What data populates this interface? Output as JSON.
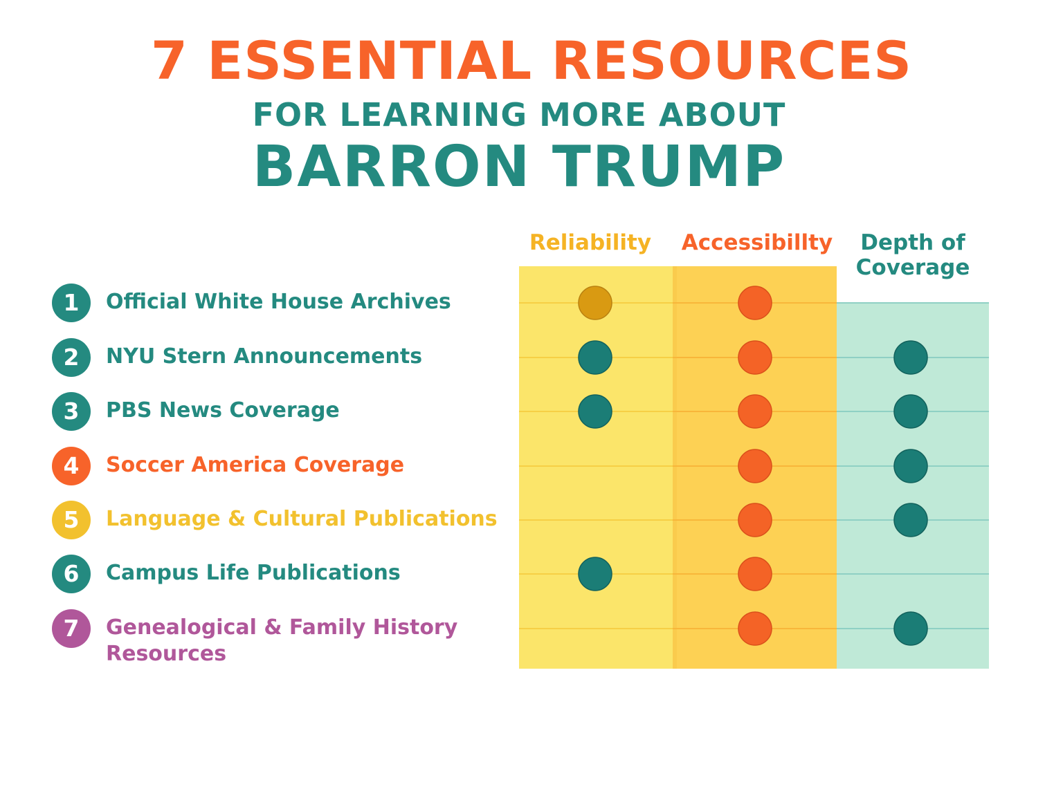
{
  "title": {
    "line1": "7 ESSENTIAL RESOURCES",
    "line2": "FOR LEARNING MORE ABOUT",
    "line3": "BARRON TRUMP"
  },
  "colors": {
    "orange": "#f7632a",
    "teal": "#248a80",
    "yellow": "#f2c12e",
    "purple": "#b0579a",
    "gold_header": "#f5b324",
    "dot_teal": "#1b7d76",
    "dot_orange": "#f46326",
    "dot_gold": "#d99a12"
  },
  "columns": [
    {
      "label_line1": "Reliability",
      "label_line2": "",
      "color": "#f5b324"
    },
    {
      "label_line1": "Accessibillty",
      "label_line2": "",
      "color": "#f7632a"
    },
    {
      "label_line1": "Depth of",
      "label_line2": "Coverage",
      "color": "#248a80"
    }
  ],
  "rows": [
    {
      "number": "1",
      "label_line1": "Official White House Archives",
      "label_line2": "",
      "color": "#248a80"
    },
    {
      "number": "2",
      "label_line1": "NYU Stern Announcements",
      "label_line2": "",
      "color": "#248a80"
    },
    {
      "number": "3",
      "label_line1": "PBS News Coverage",
      "label_line2": "",
      "color": "#248a80"
    },
    {
      "number": "4",
      "label_line1": "Soccer America Coverage",
      "label_line2": "",
      "color": "#f7632a"
    },
    {
      "number": "5",
      "label_line1": "Language & Cultural Publications",
      "label_line2": "",
      "color": "#f2c12e"
    },
    {
      "number": "6",
      "label_line1": "Campus Life Publications",
      "label_line2": "",
      "color": "#248a80"
    },
    {
      "number": "7",
      "label_line1": "Genealogical & Family History",
      "label_line2": "Resources",
      "color": "#b0579a"
    }
  ],
  "chart_data": {
    "type": "table",
    "columns": [
      "Reliability",
      "Accessibillty",
      "Depth of Coverage"
    ],
    "rows": [
      "Official White House Archives",
      "NYU Stern Announcements",
      "PBS News Coverage",
      "Soccer America Coverage",
      "Language & Cultural Publications",
      "Campus Life Publications",
      "Genealogical & Family History Resources"
    ],
    "marks": [
      [
        "gold",
        "orange",
        ""
      ],
      [
        "teal",
        "orange",
        "teal"
      ],
      [
        "teal",
        "orange",
        "teal"
      ],
      [
        "",
        "orange",
        "teal"
      ],
      [
        "",
        "orange",
        "teal"
      ],
      [
        "teal",
        "orange",
        ""
      ],
      [
        "",
        "orange",
        "teal"
      ]
    ]
  }
}
